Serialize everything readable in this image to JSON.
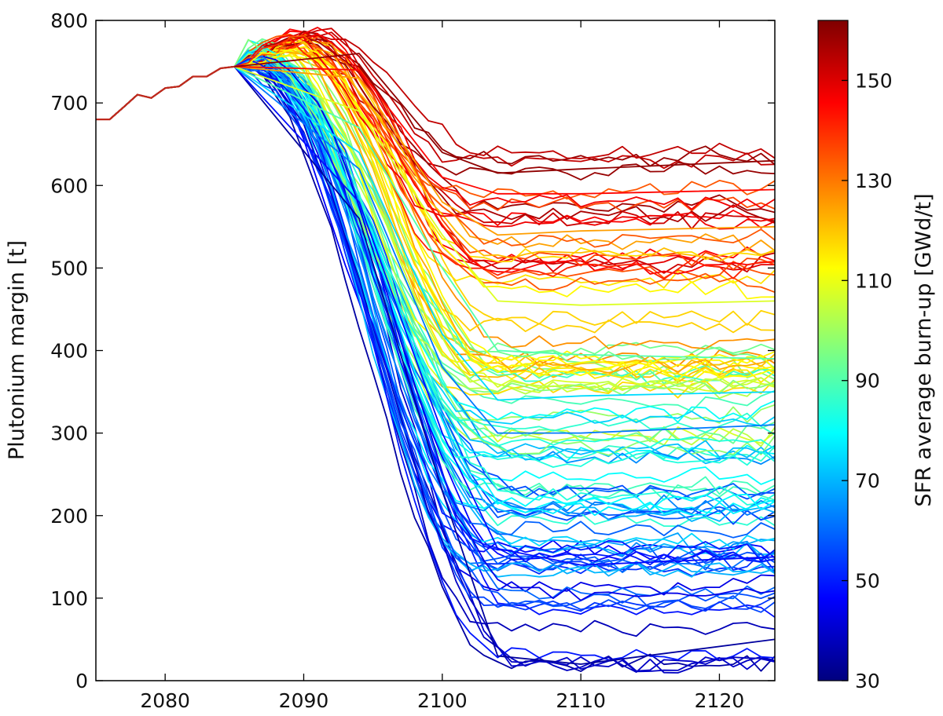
{
  "chart_data": {
    "type": "line",
    "title": "",
    "xlabel": "",
    "ylabel": "Plutonium margin [t]",
    "xlim": [
      2075,
      2124
    ],
    "ylim": [
      0,
      800
    ],
    "xticks": [
      2080,
      2090,
      2100,
      2110,
      2120
    ],
    "yticks": [
      0,
      100,
      200,
      300,
      400,
      500,
      600,
      700,
      800
    ],
    "grid": false,
    "colormap": "jet",
    "colorbar": {
      "label": "SFR average burn-up [GWd/t]",
      "range": [
        30,
        162
      ],
      "ticks": [
        30,
        50,
        70,
        90,
        110,
        130,
        150
      ]
    },
    "common_history": {
      "x": [
        2075,
        2076,
        2077,
        2078,
        2079,
        2080,
        2081,
        2082,
        2083,
        2084,
        2085
      ],
      "y": [
        680,
        680,
        695,
        710,
        706,
        718,
        720,
        732,
        732,
        742,
        744
      ]
    },
    "ensemble": {
      "n_runs": 110,
      "x_range": [
        2075,
        2124
      ],
      "typical_drawdown_years": [
        2086,
        2106
      ],
      "final_margin_range": [
        25,
        640
      ],
      "trend": "final plutonium margin increases with SFR average burn-up"
    },
    "series": [
      {
        "name": "burn-up 34 GWd/t",
        "burnup": 34,
        "x": [
          2085,
          2094,
          2100,
          2104,
          2110,
          2124
        ],
        "y": [
          742,
          560,
          230,
          30,
          20,
          50
        ]
      },
      {
        "name": "burn-up 48 GWd/t",
        "burnup": 48,
        "x": [
          2085,
          2094,
          2100,
          2104,
          2110,
          2124
        ],
        "y": [
          744,
          580,
          300,
          160,
          140,
          150
        ]
      },
      {
        "name": "burn-up 62 GWd/t",
        "burnup": 62,
        "x": [
          2085,
          2094,
          2100,
          2104,
          2110,
          2124
        ],
        "y": [
          744,
          620,
          380,
          300,
          300,
          310
        ]
      },
      {
        "name": "burn-up 75 GWd/t",
        "burnup": 75,
        "x": [
          2085,
          2094,
          2100,
          2104,
          2110,
          2124
        ],
        "y": [
          740,
          640,
          420,
          340,
          345,
          350
        ]
      },
      {
        "name": "burn-up 90 GWd/t",
        "burnup": 90,
        "x": [
          2085,
          2094,
          2100,
          2104,
          2110,
          2124
        ],
        "y": [
          744,
          670,
          500,
          400,
          395,
          390
        ]
      },
      {
        "name": "burn-up 108 GWd/t",
        "burnup": 108,
        "x": [
          2085,
          2094,
          2100,
          2104,
          2110,
          2124
        ],
        "y": [
          744,
          690,
          540,
          460,
          455,
          460
        ]
      },
      {
        "name": "burn-up 125 GWd/t",
        "burnup": 125,
        "x": [
          2085,
          2094,
          2100,
          2104,
          2110,
          2124
        ],
        "y": [
          746,
          730,
          580,
          540,
          545,
          550
        ]
      },
      {
        "name": "burn-up 145 GWd/t",
        "burnup": 145,
        "x": [
          2085,
          2094,
          2100,
          2104,
          2110,
          2124
        ],
        "y": [
          748,
          740,
          610,
          590,
          590,
          595
        ]
      },
      {
        "name": "burn-up 160 GWd/t",
        "burnup": 160,
        "x": [
          2085,
          2094,
          2100,
          2104,
          2110,
          2124
        ],
        "y": [
          748,
          760,
          640,
          615,
          620,
          630
        ]
      }
    ]
  }
}
